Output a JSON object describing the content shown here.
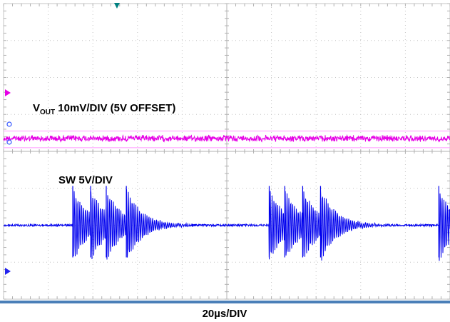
{
  "chart_data": {
    "type": "line",
    "xlabel": "20µs/DIV",
    "x_divisions": 10,
    "y_divisions": 8,
    "grid": true,
    "series": [
      {
        "label_main": "V",
        "label_sub": "OUT",
        "label_rest": " 10mV/DIV (5V OFFSET)",
        "color": "#e600e6",
        "marker_color": "#e600e6",
        "behavior": "flat noisy trace",
        "level_div": 3.65
      },
      {
        "name": "SW 5V/DIV",
        "color": "#0000ee",
        "marker_color": "#2222ee",
        "behavior": "flat baseline with decaying ringing burst packets",
        "level_div": 6.0,
        "burst_start_div": [
          1.55,
          1.95,
          2.3,
          2.75,
          5.95,
          6.3,
          6.7,
          7.1,
          9.75
        ],
        "burst_end_div": 10
      }
    ],
    "reference_lines": [
      {
        "level_div": 3.45,
        "color": "#ff99ff"
      },
      {
        "level_div": 3.9,
        "color": "#ff99ff"
      }
    ],
    "trigger_marker_color": "#008080"
  }
}
